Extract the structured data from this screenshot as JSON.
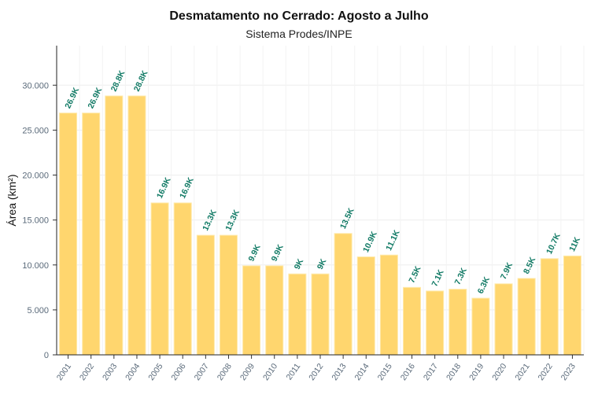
{
  "chart_data": {
    "type": "bar",
    "title": "Desmatamento no Cerrado: Agosto a Julho",
    "subtitle": "Sistema Prodes/INPE",
    "xlabel": "",
    "ylabel": "Área (km²)",
    "ylim": [
      0,
      34400
    ],
    "yticks": [
      0,
      5000,
      10000,
      15000,
      20000,
      25000,
      30000
    ],
    "ytick_labels": [
      "0",
      "5.000",
      "10.000",
      "15.000",
      "20.000",
      "25.000",
      "30.000"
    ],
    "grid": true,
    "categories": [
      "2001",
      "2002",
      "2003",
      "2004",
      "2005",
      "2006",
      "2007",
      "2008",
      "2009",
      "2010",
      "2011",
      "2012",
      "2013",
      "2014",
      "2015",
      "2016",
      "2017",
      "2018",
      "2019",
      "2020",
      "2021",
      "2022",
      "2023"
    ],
    "values": [
      26900,
      26900,
      28800,
      28800,
      16900,
      16900,
      13300,
      13300,
      9900,
      9900,
      9000,
      9000,
      13500,
      10900,
      11100,
      7500,
      7100,
      7300,
      6300,
      7900,
      8500,
      10700,
      11000
    ],
    "data_labels": [
      "26.9K",
      "26.9K",
      "28.8K",
      "28.8K",
      "16.9K",
      "16.9K",
      "13.3K",
      "13.3K",
      "9.9K",
      "9.9K",
      "9K",
      "9K",
      "13.5K",
      "10.9K",
      "11.1K",
      "7.5K",
      "7.1K",
      "7.3K",
      "6.3K",
      "7.9K",
      "8.5K",
      "10.7K",
      "11K"
    ],
    "colors": {
      "bar": "#FFD66E",
      "bar_edge": "#FFE9A8",
      "label": "#117A65",
      "tick": "#5A6A7A"
    }
  }
}
